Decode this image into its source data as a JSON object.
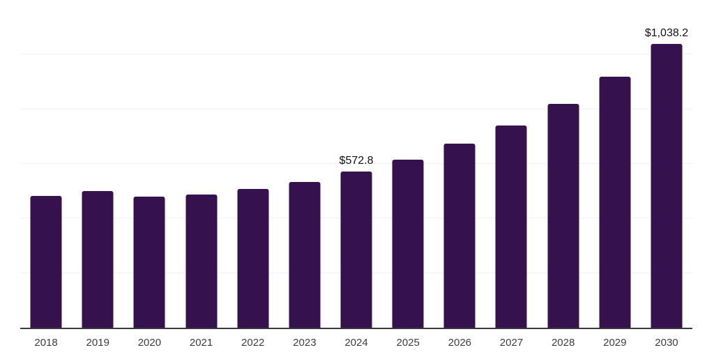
{
  "chart_data": {
    "type": "bar",
    "title": "",
    "xlabel": "",
    "ylabel": "",
    "categories": [
      "2018",
      "2019",
      "2020",
      "2021",
      "2022",
      "2023",
      "2024",
      "2025",
      "2026",
      "2027",
      "2028",
      "2029",
      "2030"
    ],
    "values": [
      482.0,
      500.9,
      479.9,
      486.5,
      506.9,
      533.2,
      572.8,
      616.4,
      673.3,
      741.6,
      820.5,
      918.2,
      1038.2
    ],
    "data_labels": [
      {
        "category": "2024",
        "text": "$572.8"
      },
      {
        "category": "2030",
        "text": "$1,038.2"
      }
    ],
    "ylim": [
      0,
      1200
    ],
    "grid_step": 200,
    "grid": true,
    "legend_position": "none",
    "colors": {
      "bar": "#35114d",
      "axis": "#3a3a3a",
      "gridline": "#f2f2f2",
      "tick_text": "#3d3d3d",
      "label_text": "#111111",
      "background": "#ffffff"
    }
  }
}
